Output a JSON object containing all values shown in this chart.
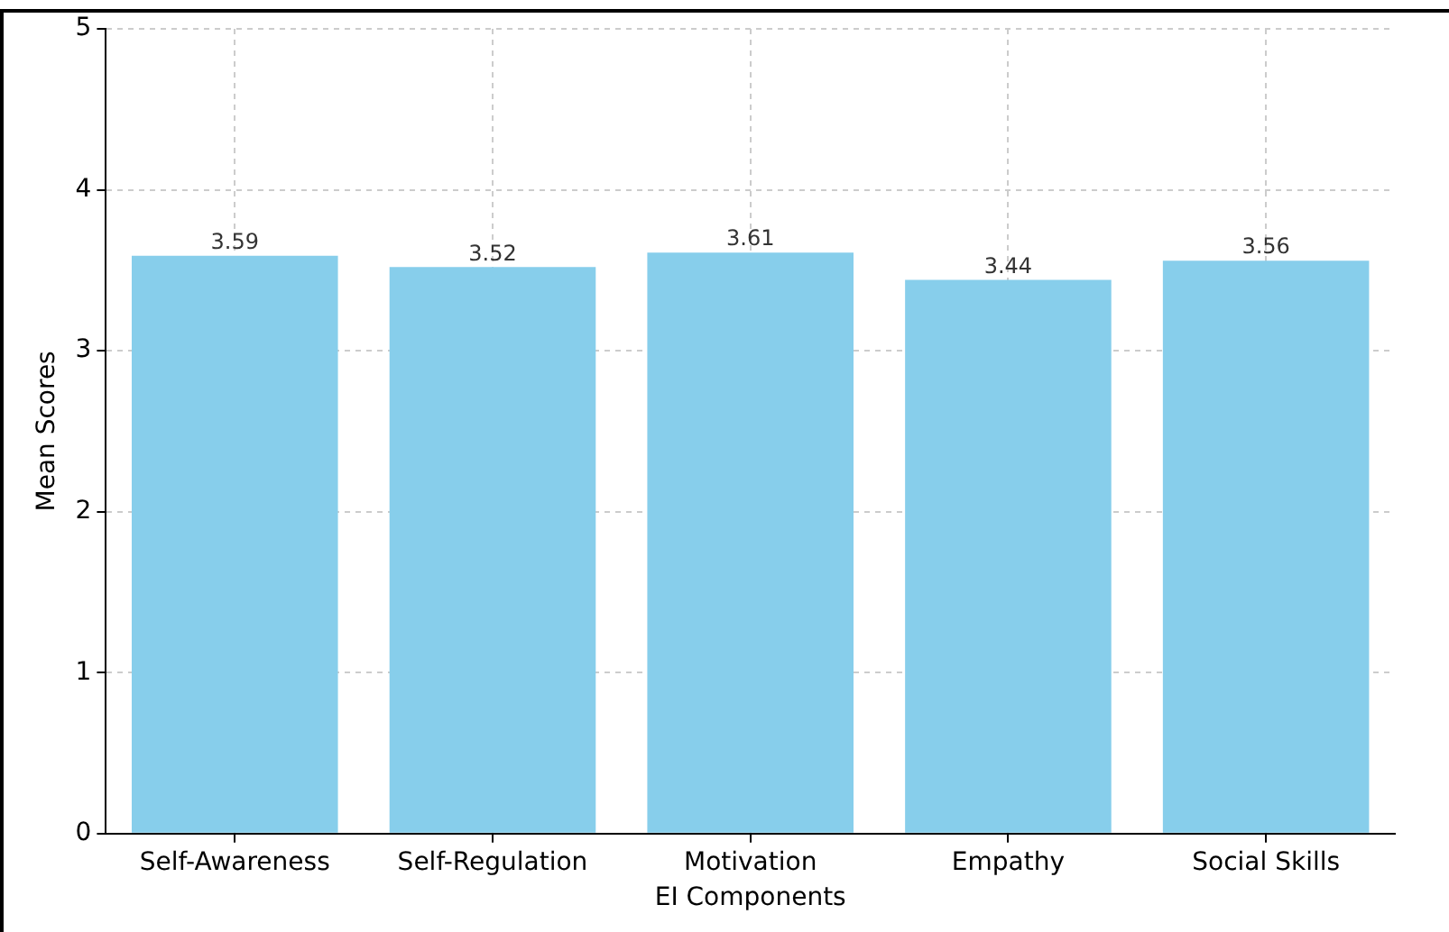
{
  "chart_data": {
    "type": "bar",
    "xlabel": "EI Components",
    "ylabel": "Mean Scores",
    "categories": [
      "Self-Awareness",
      "Self-Regulation",
      "Motivation",
      "Empathy",
      "Social Skills"
    ],
    "values": [
      3.59,
      3.52,
      3.61,
      3.44,
      3.56
    ],
    "color": "#87ceeb",
    "ylim": [
      0,
      5
    ],
    "yticks": [
      0,
      1,
      2,
      3,
      4,
      5
    ],
    "grid": true,
    "data_labels": true
  }
}
